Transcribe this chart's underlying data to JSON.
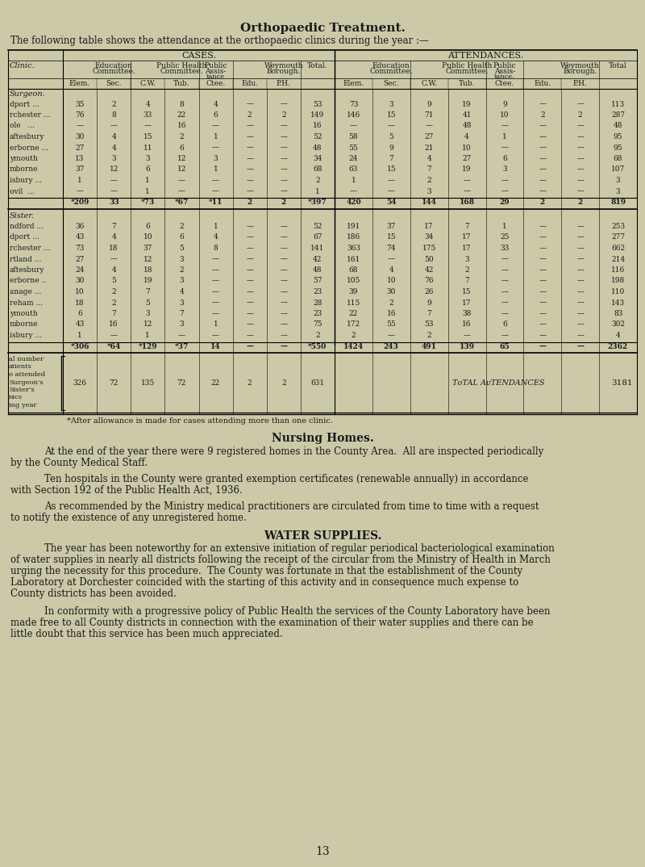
{
  "title": "Orthopaedic Treatment.",
  "subtitle": "The following table shows the attendance at the orthopaedic clinics during the year :—",
  "bg_color": "#ccc9a8",
  "text_color": "#1a1a1a",
  "section1_label": "Surgeon.",
  "section2_label": "Sister.",
  "surgeon_rows": [
    [
      "dport ...",
      "35",
      "2",
      "4",
      "8",
      "4",
      "—",
      "—",
      "53",
      "73",
      "3",
      "9",
      "19",
      "9",
      "—",
      "—",
      "113"
    ],
    [
      "rchester ...",
      "76",
      "8",
      "33",
      "22",
      "6",
      "2",
      "2",
      "149",
      "146",
      "15",
      "71",
      "41",
      "10",
      "2",
      "2",
      "287"
    ],
    [
      "ole   ...",
      "—",
      "—",
      "—",
      "16",
      "—",
      "—",
      "—",
      "16",
      "—",
      "—",
      "—",
      "48",
      "—",
      "—",
      "—",
      "48"
    ],
    [
      "aftesbury",
      "30",
      "4",
      "15",
      "2",
      "1",
      "—",
      "—",
      "52",
      "58",
      "5",
      "27",
      "4",
      "1",
      "—",
      "—",
      "95"
    ],
    [
      "erborne ...",
      "27",
      "4",
      "11",
      "6",
      "—",
      "—",
      "—",
      "48",
      "55",
      "9",
      "21",
      "10",
      "—",
      "—",
      "—",
      "95"
    ],
    [
      "ymouth",
      "13",
      "3",
      "3",
      "12",
      "3",
      "—",
      "—",
      "34",
      "24",
      "7",
      "4",
      "27",
      "6",
      "—",
      "—",
      "68"
    ],
    [
      "mborne",
      "37",
      "12",
      "6",
      "12",
      "1",
      "—",
      "—",
      "68",
      "63",
      "15",
      "7",
      "19",
      "3",
      "—",
      "—",
      "107"
    ],
    [
      "isbury ...",
      "1",
      "—",
      "1",
      "—",
      "—",
      "—",
      "—",
      "2",
      "1",
      "—",
      "2",
      "—",
      "—",
      "—",
      "—",
      "3"
    ],
    [
      "ovil  ...",
      "—",
      "—",
      "1",
      "—",
      "—",
      "—",
      "—",
      "1",
      "—",
      "—",
      "3",
      "—",
      "—",
      "—",
      "—",
      "3"
    ]
  ],
  "surgeon_total": [
    "*209",
    "33",
    "*73",
    "*67",
    "*11",
    "2",
    "2",
    "*397",
    "420",
    "54",
    "144",
    "168",
    "29",
    "2",
    "2",
    "819"
  ],
  "sister_rows": [
    [
      "ndford ...",
      "36",
      "7",
      "6",
      "2",
      "1",
      "—",
      "—",
      "52",
      "191",
      "37",
      "17",
      "7",
      "1",
      "—",
      "—",
      "253"
    ],
    [
      "dport ...",
      "43",
      "4",
      "10",
      "6",
      "4",
      "—",
      "—",
      "67",
      "186",
      "15",
      "34",
      "17",
      "25",
      "—",
      "—",
      "277"
    ],
    [
      "rchester ...",
      "73",
      "18",
      "37",
      "5",
      "8",
      "—",
      "—",
      "141",
      "363",
      "74",
      "175",
      "17",
      "33",
      "—",
      "—",
      "662"
    ],
    [
      "rtland ...",
      "27",
      "—",
      "12",
      "3",
      "—",
      "—",
      "—",
      "42",
      "161",
      "—",
      "50",
      "3",
      "—",
      "—",
      "—",
      "214"
    ],
    [
      "aftesbury",
      "24",
      "4",
      "18",
      "2",
      "—",
      "—",
      "—",
      "48",
      "68",
      "4",
      "42",
      "2",
      "—",
      "—",
      "—",
      "116"
    ],
    [
      "erborne ..",
      "30",
      "5",
      "19",
      "3",
      "—",
      "—",
      "—",
      "57",
      "105",
      "10",
      "76",
      "7",
      "—",
      "—",
      "—",
      "198"
    ],
    [
      "anage ...",
      "10",
      "2",
      "7",
      "4",
      "—",
      "—",
      "—",
      "23",
      "39",
      "30",
      "26",
      "15",
      "—",
      "—",
      "—",
      "110"
    ],
    [
      "reham ...",
      "18",
      "2",
      "5",
      "3",
      "—",
      "—",
      "—",
      "28",
      "115",
      "2",
      "9",
      "17",
      "—",
      "—",
      "—",
      "143"
    ],
    [
      "ymouth",
      "6",
      "7",
      "3",
      "7",
      "—",
      "—",
      "—",
      "23",
      "22",
      "16",
      "7",
      "38",
      "—",
      "—",
      "—",
      "83"
    ],
    [
      "mborne",
      "43",
      "16",
      "12",
      "3",
      "1",
      "—",
      "—",
      "75",
      "172",
      "55",
      "53",
      "16",
      "6",
      "—",
      "—",
      "302"
    ],
    [
      "isbury ...",
      "1",
      "—",
      "1",
      "—",
      "—",
      "—",
      "—",
      "2",
      "2",
      "—",
      "2",
      "—",
      "—",
      "—",
      "—",
      "4"
    ]
  ],
  "sister_total": [
    "*306",
    "*64",
    "*129",
    "*37",
    "14",
    "—",
    "—",
    "*550",
    "1424",
    "243",
    "491",
    "139",
    "65",
    "—",
    "—",
    "2362"
  ],
  "grand_total_labels": [
    "al number",
    "atients",
    "o attended",
    "Surgeon's",
    "Sister's",
    "nics",
    "ing year"
  ],
  "grand_total_row": [
    "326",
    "72",
    "135",
    "72",
    "22",
    "2",
    "2",
    "631"
  ],
  "total_attendances_label": "Total Attendances",
  "total_attendances": "3181",
  "footnote": "*After allowance is made for cases attending more than one clinic.",
  "nursing_homes_title": "Nursing Homes.",
  "para_indent": 55,
  "nursing_homes_para1_line1": "At the end of the year there were 9 registered homes in the County Area.  All are inspected periodically",
  "nursing_homes_para1_line2": "by the County Medical Staff.",
  "nursing_homes_para2_line1": "Ten hospitals in the County were granted exemption certificates (renewable annually) in accordance",
  "nursing_homes_para2_line2": "with Section 192 of the Public Health Act, 1936.",
  "nursing_homes_para3_line1": "As recommended by the Ministry medical practitioners are circulated from time to time with a request",
  "nursing_homes_para3_line2": "to notify the existence of any unregistered home.",
  "water_title": "WATER SUPPLIES.",
  "water_para1_lines": [
    "The year has been noteworthy for an extensive initiation of regular periodical bacteriological examination",
    "of water supplies in nearly all districts following the receipt of the circular from the Ministry of Health in March",
    "urging the necessity for this procedure.  The County was fortunate in that the establishment of the County",
    "Laboratory at Dorchester coincided with the starting of this activity and in consequence much expense to",
    "County districts has been avoided."
  ],
  "water_para2_lines": [
    "In conformity with a progressive policy of Public Health the services of the County Laboratory have been",
    "made free to all County districts in connection with the examination of their water supplies and there can be",
    "little doubt that this service has been much appreciated."
  ],
  "page_number": "13"
}
